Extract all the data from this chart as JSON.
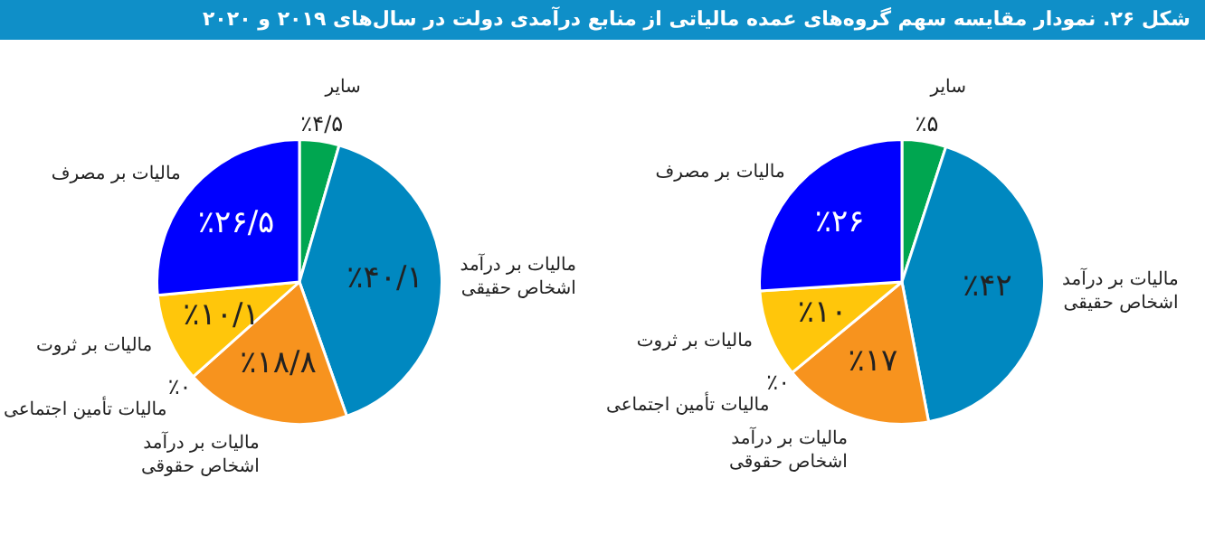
{
  "chart_data": [
    {
      "type": "pie",
      "title": "شکل ۲۶. نمودار مقایسه سهم گروه‌های عمده مالیاتی از منابع درآمدی دولت در سال‌های ۲۰۱۹ و ۲۰۲۰",
      "categories": [
        "سایر",
        "مالیات بر درآمد اشخاص حقیقی",
        "مالیات بر درآمد اشخاص حقوقی",
        "مالیات تأمین اجتماعی",
        "مالیات بر ثروت",
        "مالیات بر مصرف"
      ],
      "values": [
        4.5,
        40.1,
        18.8,
        0,
        10.1,
        26.5
      ],
      "value_labels": [
        "٪۴/۵",
        "٪۴۰/۱",
        "٪۱۸/۸",
        "٪۰",
        "٪۱۰/۱",
        "٪۲۶/۵"
      ],
      "colors": [
        "#00a650",
        "#0088c0",
        "#f7931e",
        "#9e9e9e",
        "#ffc60b",
        "#0000ff"
      ],
      "legend": false
    },
    {
      "type": "pie",
      "categories": [
        "سایر",
        "مالیات بر درآمد اشخاص حقیقی",
        "مالیات بر درآمد اشخاص حقوقی",
        "مالیات تأمین اجتماعی",
        "مالیات بر ثروت",
        "مالیات بر مصرف"
      ],
      "values": [
        5,
        42,
        17,
        0,
        10,
        26
      ],
      "value_labels": [
        "٪۵",
        "٪۴۲",
        "٪۱۷",
        "٪۰",
        "٪۱۰",
        "٪۲۶"
      ],
      "colors": [
        "#00a650",
        "#0088c0",
        "#f7931e",
        "#9e9e9e",
        "#ffc60b",
        "#0000ff"
      ],
      "legend": false
    }
  ]
}
